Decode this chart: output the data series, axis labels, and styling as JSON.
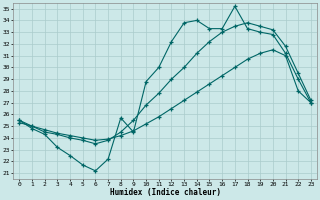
{
  "xlabel": "Humidex (Indice chaleur)",
  "bg_color": "#cce8e8",
  "grid_color": "#aacccc",
  "line_color": "#006666",
  "xlim": [
    -0.5,
    23.5
  ],
  "ylim": [
    20.5,
    35.5
  ],
  "xticks": [
    0,
    1,
    2,
    3,
    4,
    5,
    6,
    7,
    8,
    9,
    10,
    11,
    12,
    13,
    14,
    15,
    16,
    17,
    18,
    19,
    20,
    21,
    22,
    23
  ],
  "yticks": [
    21,
    22,
    23,
    24,
    25,
    26,
    27,
    28,
    29,
    30,
    31,
    32,
    33,
    34,
    35
  ],
  "line1_x": [
    0,
    1,
    2,
    3,
    4,
    5,
    6,
    7,
    8,
    9,
    10,
    11,
    12,
    13,
    14,
    15,
    16,
    17,
    18,
    19,
    20,
    21,
    22,
    23
  ],
  "line1_y": [
    25.5,
    24.8,
    24.3,
    23.2,
    22.5,
    21.7,
    21.2,
    22.2,
    25.7,
    24.5,
    28.8,
    30.0,
    32.2,
    33.8,
    34.0,
    33.3,
    33.3,
    35.2,
    33.3,
    33.0,
    32.8,
    31.2,
    29.0,
    27.0
  ],
  "line2_x": [
    0,
    1,
    2,
    3,
    4,
    5,
    6,
    7,
    8,
    9,
    10,
    11,
    12,
    13,
    14,
    15,
    16,
    17,
    18,
    19,
    20,
    21,
    22,
    23
  ],
  "line2_y": [
    25.3,
    25.0,
    24.7,
    24.4,
    24.2,
    24.0,
    23.8,
    23.9,
    24.2,
    24.6,
    25.2,
    25.8,
    26.5,
    27.2,
    27.9,
    28.6,
    29.3,
    30.0,
    30.7,
    31.2,
    31.5,
    31.0,
    28.0,
    27.0
  ],
  "line3_x": [
    0,
    1,
    2,
    3,
    4,
    5,
    6,
    7,
    8,
    9,
    10,
    11,
    12,
    13,
    14,
    15,
    16,
    17,
    18,
    19,
    20,
    21,
    22,
    23
  ],
  "line3_y": [
    25.5,
    25.0,
    24.5,
    24.3,
    24.0,
    23.8,
    23.5,
    23.8,
    24.5,
    25.5,
    26.8,
    27.8,
    29.0,
    30.0,
    31.2,
    32.2,
    33.0,
    33.5,
    33.8,
    33.5,
    33.2,
    31.8,
    29.5,
    27.2
  ]
}
